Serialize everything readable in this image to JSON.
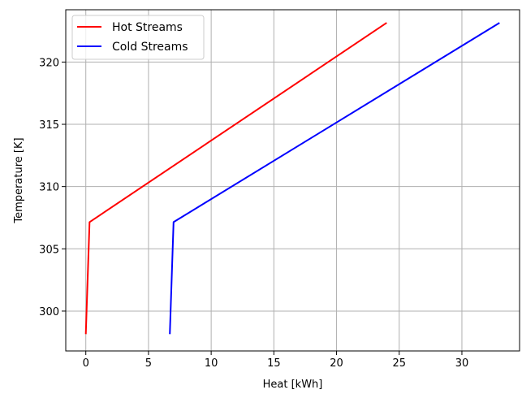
{
  "chart_data": {
    "type": "line",
    "xlabel": "Heat [kWh]",
    "ylabel": "Temperature [K]",
    "xlim": [
      -1.6,
      34.6
    ],
    "ylim": [
      296.8,
      324.2
    ],
    "xticks": [
      0,
      5,
      10,
      15,
      20,
      25,
      30
    ],
    "yticks": [
      300,
      305,
      310,
      315,
      320
    ],
    "grid": true,
    "legend_position": "top-left",
    "series": [
      {
        "name": "Hot Streams",
        "color": "#ff0000",
        "points": [
          [
            0.0,
            298.15
          ],
          [
            0.3,
            307.15
          ],
          [
            24.0,
            323.15
          ]
        ]
      },
      {
        "name": "Cold Streams",
        "color": "#0000ff",
        "points": [
          [
            6.7,
            298.15
          ],
          [
            7.0,
            307.15
          ],
          [
            33.0,
            323.15
          ]
        ]
      }
    ]
  }
}
